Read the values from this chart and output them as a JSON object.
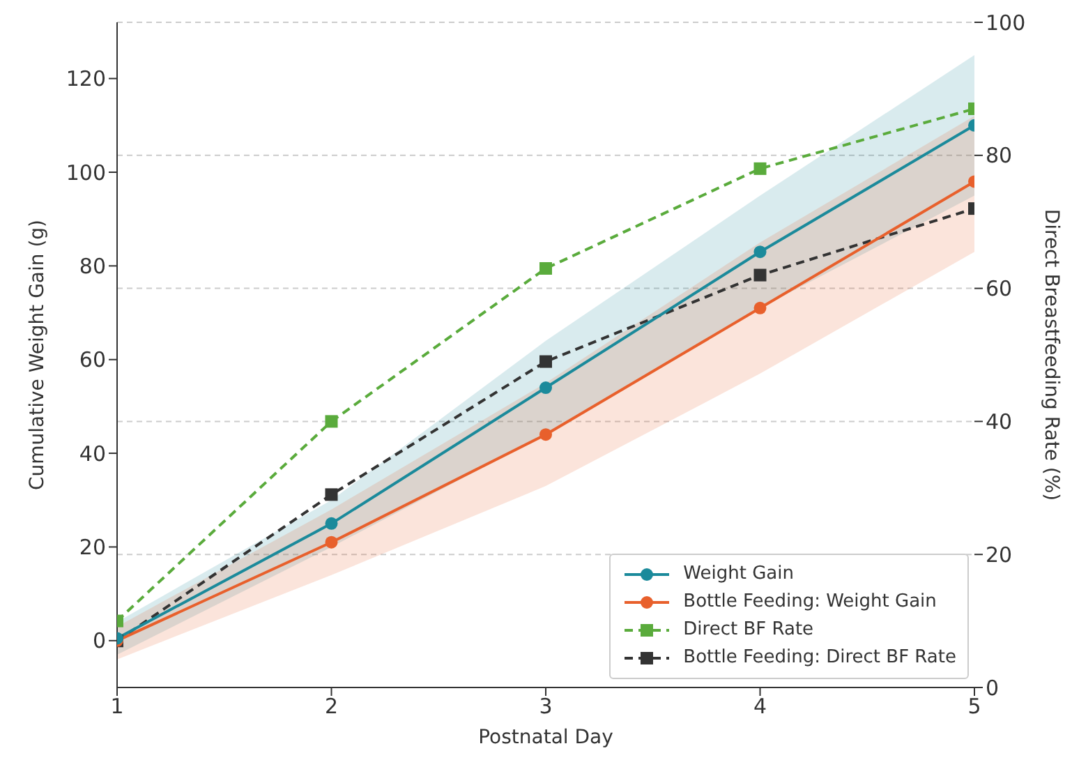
{
  "chart_data": {
    "type": "line",
    "xlabel": "Postnatal Day",
    "ylabel": "Cumulative Weight Gain (g)",
    "y2label": "Direct Breastfeeding Rate (%)",
    "x": [
      1,
      2,
      3,
      4,
      5
    ],
    "xlim": [
      1,
      5
    ],
    "xticks": [
      1,
      2,
      3,
      4,
      5
    ],
    "ylim": [
      -10,
      132
    ],
    "yticks": [
      0,
      20,
      40,
      60,
      80,
      100,
      120
    ],
    "y2lim": [
      0,
      100
    ],
    "y2ticks": [
      0,
      20,
      40,
      60,
      80,
      100
    ],
    "grid": "y2",
    "legend": "bottom right",
    "series": [
      {
        "name": "Weight Gain",
        "color": "#1b8a9b",
        "values": [
          0.5,
          25,
          54,
          83,
          110
        ],
        "lower": [
          -3,
          20,
          44,
          71,
          95
        ],
        "upper": [
          4,
          30,
          64,
          95,
          125
        ],
        "marker": "circle",
        "line_style": "solid"
      },
      {
        "name": "Bottle Feeding: Weight Gain",
        "color": "#e8602c",
        "values": [
          0,
          21,
          44,
          71,
          98
        ],
        "lower": [
          -4,
          14,
          33,
          57,
          83
        ],
        "upper": [
          3,
          28,
          55,
          85,
          112
        ],
        "marker": "circle",
        "line_style": "solid"
      },
      {
        "name": "Direct BF Rate",
        "color": "#5aab3c",
        "values": [
          10,
          40,
          63,
          78,
          87
        ],
        "axis": "y2",
        "marker": "square",
        "line_style": "dashed"
      },
      {
        "name": "Bottle Feeding: Direct BF Rate",
        "color": "#333333",
        "values": [
          7,
          29,
          49,
          62,
          72
        ],
        "axis": "y2",
        "marker": "square",
        "line_style": "dashed"
      }
    ]
  }
}
